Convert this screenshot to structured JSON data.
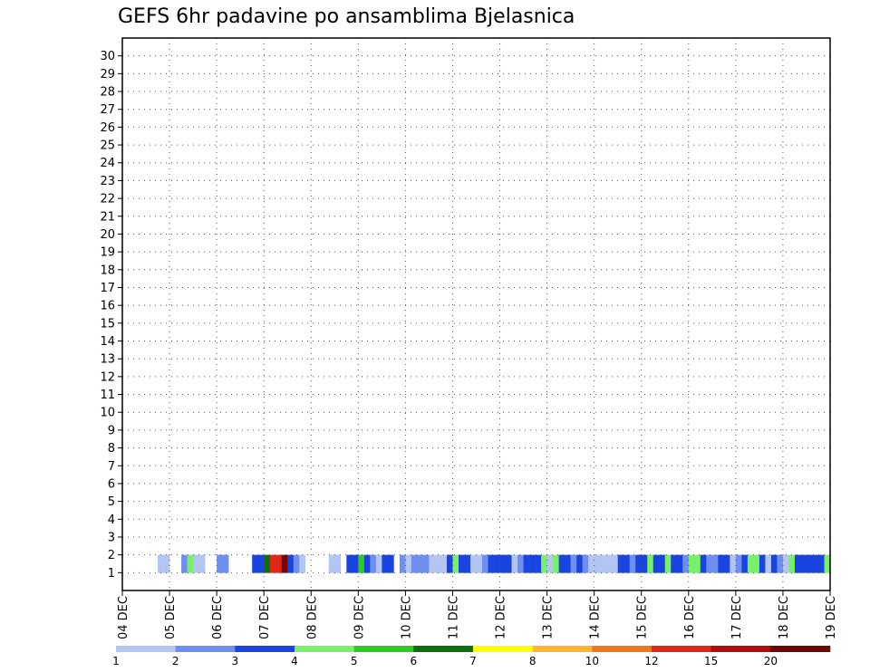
{
  "chart_data": {
    "type": "heatmap",
    "title": "GEFS 6hr padavine po ansamblima Bjelasnica",
    "xlabel": "",
    "ylabel": "",
    "x_ticks": [
      "04 DEC",
      "05 DEC",
      "06 DEC",
      "07 DEC",
      "08 DEC",
      "09 DEC",
      "10 DEC",
      "11 DEC",
      "12 DEC",
      "13 DEC",
      "14 DEC",
      "15 DEC",
      "16 DEC",
      "17 DEC",
      "18 DEC",
      "19 DEC"
    ],
    "y_ticks": [
      1,
      2,
      3,
      4,
      5,
      6,
      7,
      8,
      9,
      10,
      11,
      12,
      13,
      14,
      15,
      16,
      17,
      18,
      19,
      20,
      21,
      22,
      23,
      24,
      25,
      26,
      27,
      28,
      29,
      30
    ],
    "y_range": [
      0,
      30
    ],
    "grid": true,
    "colorbar": {
      "levels": [
        "1",
        "2",
        "3",
        "4",
        "5",
        "6",
        "7",
        "8",
        "10",
        "12",
        "15",
        "20"
      ],
      "colors": [
        "#b3c6f2",
        "#6e8ff0",
        "#1a44e0",
        "#7af06a",
        "#2ecc22",
        "#0d6e0d",
        "#ffff00",
        "#ffb52e",
        "#f07818",
        "#e0281a",
        "#b00e0e",
        "#6e0808"
      ]
    },
    "cells": [
      [
        6,
        1,
        0
      ],
      [
        7,
        1,
        0
      ],
      [
        10,
        1,
        1
      ],
      [
        11,
        1,
        3
      ],
      [
        12,
        1,
        0
      ],
      [
        13,
        1,
        0
      ],
      [
        16,
        1,
        1
      ],
      [
        17,
        1,
        1
      ],
      [
        22,
        1,
        2
      ],
      [
        23,
        1,
        2
      ],
      [
        24,
        1,
        5
      ],
      [
        25,
        1,
        9
      ],
      [
        26,
        1,
        9
      ],
      [
        27,
        1,
        11
      ],
      [
        28,
        1,
        2
      ],
      [
        29,
        1,
        1
      ],
      [
        30,
        1,
        0
      ],
      [
        35,
        1,
        0
      ],
      [
        36,
        1,
        0
      ],
      [
        38,
        1,
        2
      ],
      [
        39,
        1,
        2
      ],
      [
        40,
        1,
        4
      ],
      [
        41,
        1,
        2
      ],
      [
        42,
        1,
        1
      ],
      [
        43,
        1,
        0
      ],
      [
        44,
        1,
        2
      ],
      [
        45,
        1,
        2
      ],
      [
        47,
        1,
        1
      ],
      [
        48,
        1,
        0
      ],
      [
        49,
        1,
        1
      ],
      [
        50,
        1,
        1
      ],
      [
        51,
        1,
        1
      ],
      [
        52,
        1,
        0
      ],
      [
        53,
        1,
        0
      ],
      [
        54,
        1,
        0
      ],
      [
        55,
        1,
        2
      ],
      [
        56,
        1,
        3
      ],
      [
        57,
        1,
        2
      ],
      [
        58,
        1,
        2
      ],
      [
        59,
        1,
        0
      ],
      [
        60,
        1,
        0
      ],
      [
        61,
        1,
        1
      ],
      [
        62,
        1,
        2
      ],
      [
        63,
        1,
        2
      ],
      [
        64,
        1,
        2
      ],
      [
        65,
        1,
        2
      ],
      [
        66,
        1,
        0
      ],
      [
        67,
        1,
        1
      ],
      [
        68,
        1,
        2
      ],
      [
        69,
        1,
        2
      ],
      [
        70,
        1,
        2
      ],
      [
        71,
        1,
        3
      ],
      [
        72,
        1,
        0
      ],
      [
        73,
        1,
        3
      ],
      [
        74,
        1,
        2
      ],
      [
        75,
        1,
        2
      ],
      [
        76,
        1,
        1
      ],
      [
        77,
        1,
        2
      ],
      [
        78,
        1,
        1
      ],
      [
        79,
        1,
        0
      ],
      [
        80,
        1,
        0
      ],
      [
        81,
        1,
        0
      ],
      [
        82,
        1,
        0
      ],
      [
        83,
        1,
        0
      ],
      [
        84,
        1,
        2
      ],
      [
        85,
        1,
        2
      ],
      [
        86,
        1,
        1
      ],
      [
        87,
        1,
        2
      ],
      [
        88,
        1,
        2
      ],
      [
        89,
        1,
        3
      ],
      [
        90,
        1,
        2
      ],
      [
        91,
        1,
        2
      ],
      [
        92,
        1,
        3
      ],
      [
        93,
        1,
        2
      ],
      [
        94,
        1,
        2
      ],
      [
        95,
        1,
        1
      ],
      [
        96,
        1,
        3
      ],
      [
        97,
        1,
        3
      ],
      [
        98,
        1,
        2
      ],
      [
        99,
        1,
        1
      ],
      [
        100,
        1,
        1
      ],
      [
        101,
        1,
        2
      ],
      [
        102,
        1,
        2
      ],
      [
        103,
        1,
        0
      ],
      [
        104,
        1,
        1
      ],
      [
        105,
        1,
        2
      ],
      [
        106,
        1,
        3
      ],
      [
        107,
        1,
        3
      ],
      [
        108,
        1,
        2
      ],
      [
        109,
        1,
        0
      ],
      [
        110,
        1,
        2
      ],
      [
        111,
        1,
        1
      ],
      [
        112,
        1,
        0
      ],
      [
        113,
        1,
        3
      ],
      [
        114,
        1,
        2
      ],
      [
        115,
        1,
        2
      ],
      [
        116,
        1,
        2
      ],
      [
        117,
        1,
        2
      ],
      [
        118,
        1,
        2
      ],
      [
        119,
        1,
        3
      ]
    ]
  }
}
